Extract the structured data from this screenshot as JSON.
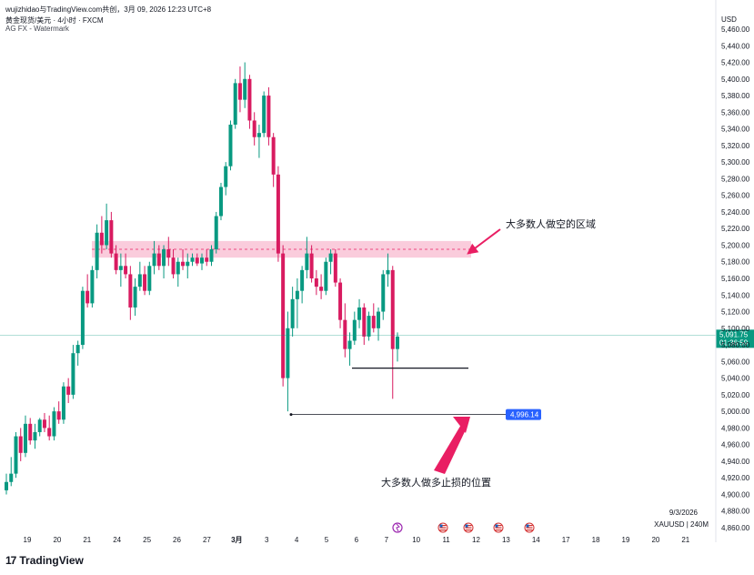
{
  "header": {
    "attribution": "wujizhidao与TradingView.com共创，3月 09, 2026 12:23 UTC+8",
    "symbol_line": "黄金现货/美元 · 4小时 · FXCM",
    "watermark": "AG FX - Watermark"
  },
  "branding": {
    "logo_mark": "17",
    "name": "TradingView"
  },
  "info": {
    "date": "9/3/2026",
    "symbol": "XAUUSD | 240M"
  },
  "colors": {
    "up": "#089981",
    "down": "#d81b60",
    "zone_fill": "#f8bbd0",
    "zone_line": "#e91e63",
    "arrow": "#e91e63",
    "price_label": "#089981",
    "stop_label": "#2962ff"
  },
  "chart_data": {
    "type": "candlestick",
    "currency": "USD",
    "y_ticks": [
      "5,460.00",
      "5,440.00",
      "5,420.00",
      "5,400.00",
      "5,380.00",
      "5,360.00",
      "5,340.00",
      "5,320.00",
      "5,300.00",
      "5,280.00",
      "5,260.00",
      "5,240.00",
      "5,220.00",
      "5,200.00",
      "5,180.00",
      "5,160.00",
      "5,140.00",
      "5,120.00",
      "5,100.00",
      "5,080.00",
      "5,060.00",
      "5,040.00",
      "5,020.00",
      "5,000.00",
      "4,980.00",
      "4,960.00",
      "4,940.00",
      "4,920.00",
      "4,900.00",
      "4,880.00",
      "4,860.00"
    ],
    "x_labels": [
      "19",
      "20",
      "21",
      "24",
      "25",
      "26",
      "27",
      "3月",
      "3",
      "4",
      "5",
      "6",
      "7",
      "10",
      "11",
      "12",
      "13",
      "14",
      "17",
      "18",
      "19",
      "20",
      "21"
    ],
    "ylim": [
      4850,
      5470
    ],
    "current_price": {
      "label": "5,091.75",
      "countdown": "01:36:59",
      "value": 5091.75
    },
    "stop_level": {
      "label": "4,996.14",
      "value": 4996.14
    },
    "support_level": 5052,
    "resistance_zone": {
      "low": 5185,
      "high": 5205,
      "mid": 5195
    },
    "annotations": [
      {
        "text": "大多数人做空的区域"
      },
      {
        "text": "大多数人做多止损的位置"
      }
    ],
    "event_icons": [
      "storm-icon",
      "us-flag-icon",
      "us-flag-icon",
      "us-flag-icon",
      "us-flag-icon"
    ],
    "candles": [
      [
        4905,
        4925,
        4900,
        4915
      ],
      [
        4915,
        4945,
        4910,
        4925
      ],
      [
        4925,
        4975,
        4920,
        4970
      ],
      [
        4970,
        4980,
        4940,
        4950
      ],
      [
        4950,
        4995,
        4945,
        4985
      ],
      [
        4985,
        4992,
        4960,
        4965
      ],
      [
        4965,
        4985,
        4955,
        4975
      ],
      [
        4975,
        4992,
        4970,
        4990
      ],
      [
        4990,
        4998,
        4975,
        4980
      ],
      [
        4980,
        4995,
        4965,
        4970
      ],
      [
        4970,
        5005,
        4965,
        5000
      ],
      [
        5000,
        5012,
        4985,
        4990
      ],
      [
        4990,
        5035,
        4985,
        5030
      ],
      [
        5030,
        5040,
        5010,
        5020
      ],
      [
        5020,
        5080,
        5015,
        5070
      ],
      [
        5070,
        5085,
        5055,
        5080
      ],
      [
        5080,
        5150,
        5075,
        5145
      ],
      [
        5145,
        5165,
        5125,
        5130
      ],
      [
        5130,
        5175,
        5125,
        5170
      ],
      [
        5170,
        5225,
        5160,
        5215
      ],
      [
        5215,
        5235,
        5190,
        5200
      ],
      [
        5200,
        5250,
        5195,
        5230
      ],
      [
        5230,
        5240,
        5185,
        5190
      ],
      [
        5190,
        5200,
        5165,
        5170
      ],
      [
        5170,
        5190,
        5150,
        5175
      ],
      [
        5175,
        5190,
        5160,
        5165
      ],
      [
        5165,
        5175,
        5110,
        5125
      ],
      [
        5125,
        5160,
        5115,
        5150
      ],
      [
        5150,
        5180,
        5145,
        5165
      ],
      [
        5165,
        5175,
        5140,
        5145
      ],
      [
        5145,
        5180,
        5140,
        5175
      ],
      [
        5175,
        5205,
        5165,
        5190
      ],
      [
        5190,
        5200,
        5170,
        5175
      ],
      [
        5175,
        5200,
        5160,
        5195
      ],
      [
        5195,
        5210,
        5175,
        5185
      ],
      [
        5185,
        5195,
        5160,
        5165
      ],
      [
        5165,
        5185,
        5150,
        5180
      ],
      [
        5180,
        5195,
        5170,
        5175
      ],
      [
        5175,
        5190,
        5160,
        5180
      ],
      [
        5180,
        5190,
        5175,
        5185
      ],
      [
        5185,
        5190,
        5175,
        5178
      ],
      [
        5178,
        5190,
        5170,
        5185
      ],
      [
        5185,
        5195,
        5175,
        5180
      ],
      [
        5180,
        5200,
        5175,
        5195
      ],
      [
        5195,
        5240,
        5190,
        5235
      ],
      [
        5235,
        5275,
        5230,
        5270
      ],
      [
        5270,
        5300,
        5260,
        5295
      ],
      [
        5295,
        5350,
        5290,
        5345
      ],
      [
        5345,
        5400,
        5340,
        5395
      ],
      [
        5395,
        5415,
        5360,
        5375
      ],
      [
        5375,
        5420,
        5365,
        5400
      ],
      [
        5400,
        5405,
        5340,
        5350
      ],
      [
        5350,
        5360,
        5320,
        5330
      ],
      [
        5330,
        5345,
        5305,
        5335
      ],
      [
        5335,
        5385,
        5330,
        5380
      ],
      [
        5380,
        5390,
        5320,
        5330
      ],
      [
        5330,
        5335,
        5270,
        5285
      ],
      [
        5285,
        5295,
        5180,
        5190
      ],
      [
        5190,
        5200,
        5030,
        5040
      ],
      [
        5040,
        5120,
        5000,
        5100
      ],
      [
        5100,
        5150,
        5090,
        5135
      ],
      [
        5135,
        5160,
        5100,
        5145
      ],
      [
        5145,
        5175,
        5130,
        5170
      ],
      [
        5170,
        5210,
        5160,
        5190
      ],
      [
        5190,
        5200,
        5155,
        5160
      ],
      [
        5160,
        5170,
        5140,
        5150
      ],
      [
        5150,
        5165,
        5135,
        5145
      ],
      [
        5145,
        5185,
        5140,
        5180
      ],
      [
        5180,
        5195,
        5165,
        5190
      ],
      [
        5190,
        5195,
        5150,
        5155
      ],
      [
        5155,
        5160,
        5100,
        5110
      ],
      [
        5110,
        5130,
        5065,
        5075
      ],
      [
        5075,
        5095,
        5055,
        5085
      ],
      [
        5085,
        5120,
        5080,
        5110
      ],
      [
        5110,
        5135,
        5100,
        5125
      ],
      [
        5125,
        5130,
        5080,
        5090
      ],
      [
        5090,
        5120,
        5085,
        5115
      ],
      [
        5115,
        5130,
        5095,
        5100
      ],
      [
        5100,
        5125,
        5085,
        5120
      ],
      [
        5120,
        5170,
        5110,
        5165
      ],
      [
        5165,
        5190,
        5150,
        5170
      ],
      [
        5170,
        5175,
        5015,
        5075
      ],
      [
        5075,
        5095,
        5060,
        5090
      ]
    ]
  }
}
